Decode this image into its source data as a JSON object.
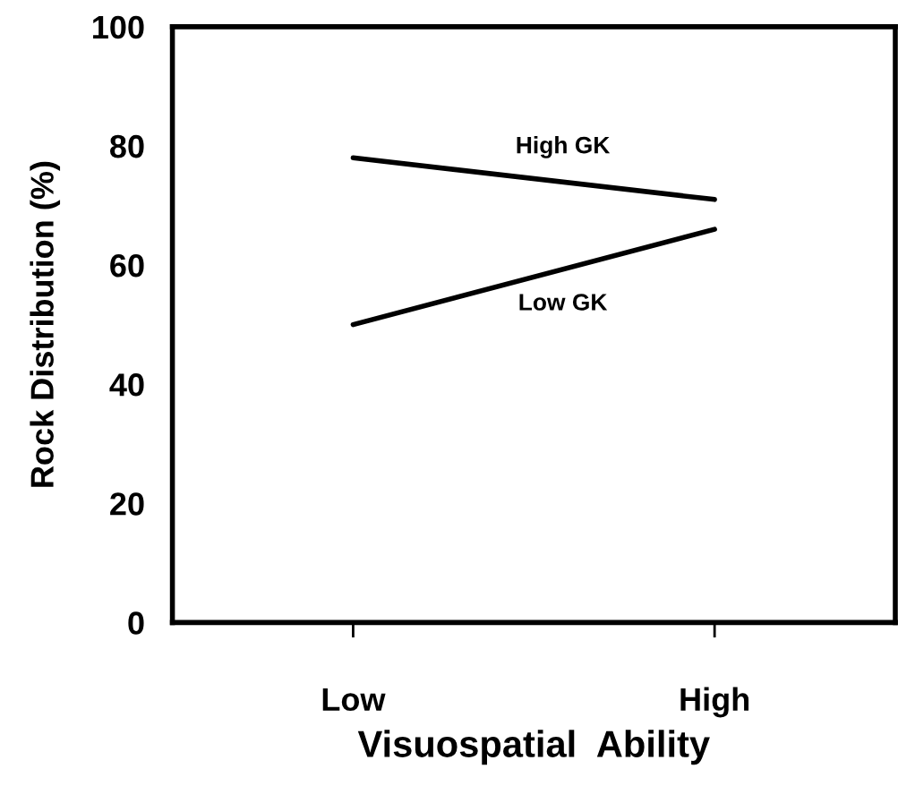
{
  "chart_data": {
    "type": "line",
    "xlabel": "Visuospatial  Ability",
    "ylabel": "Rock Distribution (%)",
    "categories": [
      "Low",
      "High"
    ],
    "series": [
      {
        "name": "High GK",
        "color": "#000000",
        "values": [
          78,
          71
        ]
      },
      {
        "name": "Low GK",
        "color": "#000000",
        "values": [
          50,
          66
        ]
      }
    ],
    "ylim": [
      0,
      100
    ],
    "yticks": [
      0,
      20,
      40,
      60,
      80,
      100
    ],
    "grid": false,
    "legend": false,
    "marker": "none",
    "line_style": "solid"
  }
}
